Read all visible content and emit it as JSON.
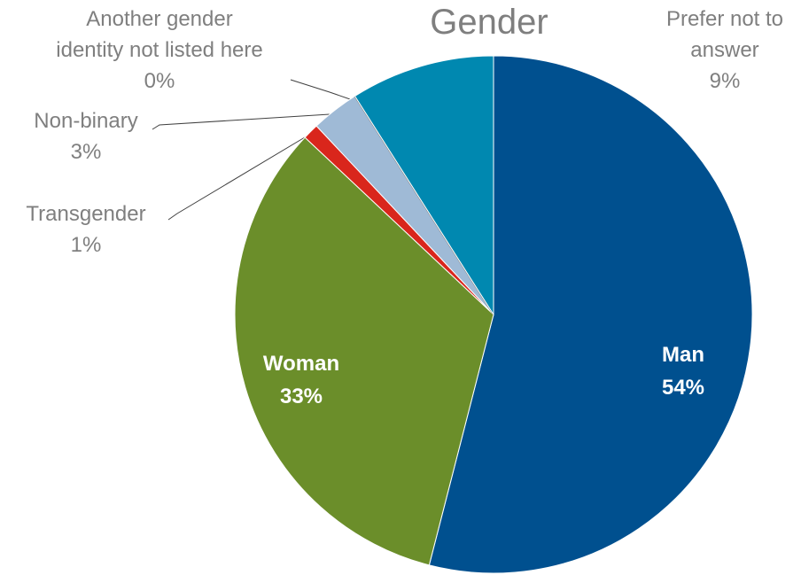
{
  "chart_data": {
    "type": "pie",
    "title": "Gender",
    "categories": [
      "Man",
      "Woman",
      "Transgender",
      "Non-binary",
      "Another gender\nidentity not listed here",
      "Prefer not to\nanswer"
    ],
    "values": [
      54,
      33,
      1,
      3,
      0,
      9
    ],
    "value_labels": [
      "54%",
      "33%",
      "1%",
      "3%",
      "0%",
      "9%"
    ],
    "colors": [
      "#00508f",
      "#6b8e2a",
      "#d9261c",
      "#9fbad6",
      "#7f7f7f",
      "#0088b0"
    ]
  }
}
